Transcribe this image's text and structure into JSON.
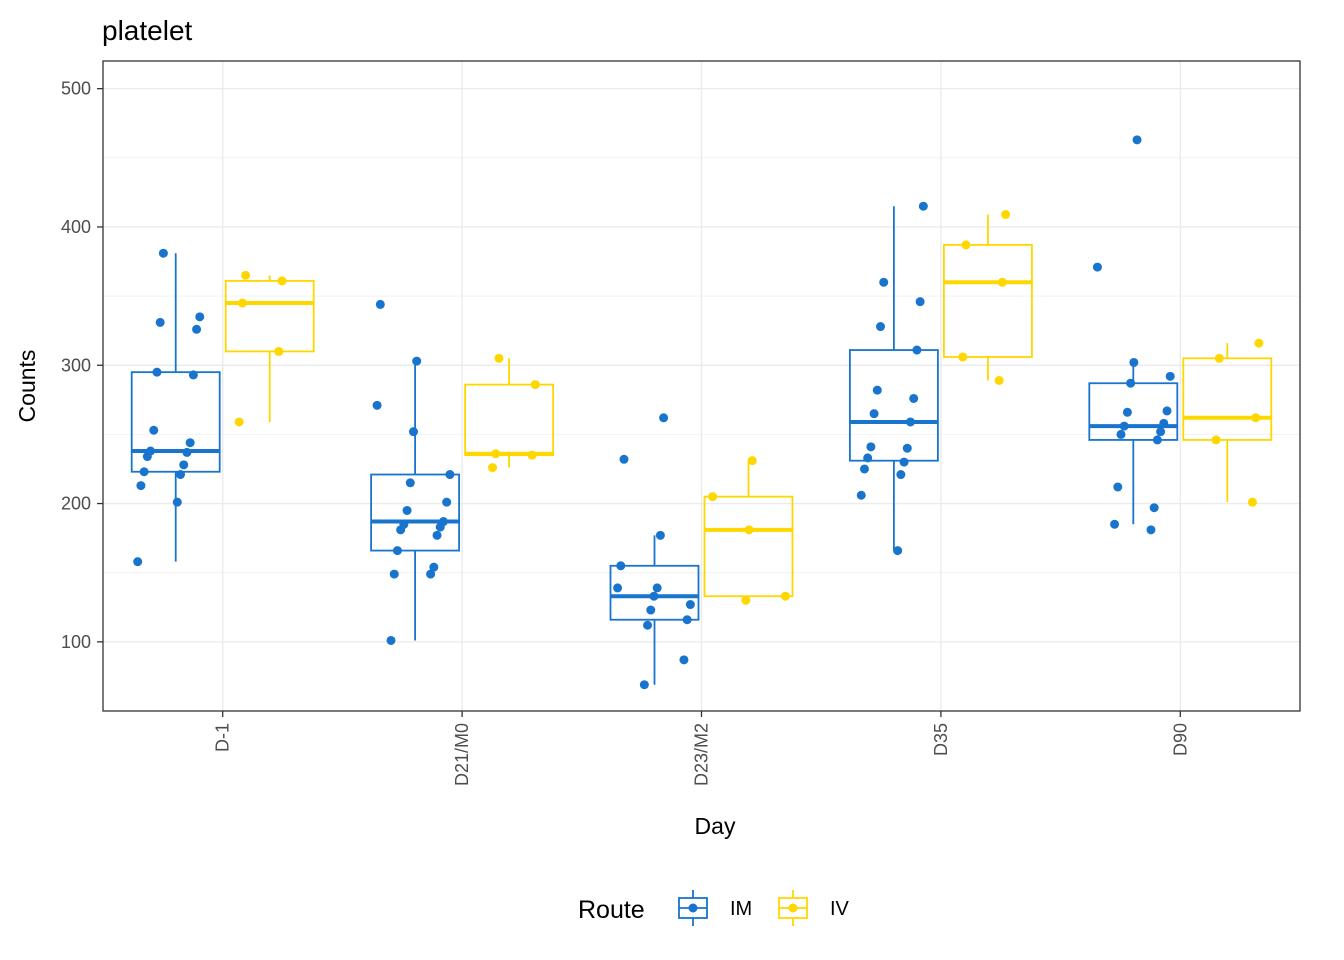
{
  "chart_data": {
    "type": "box",
    "title": "platelet",
    "xlabel": "Day",
    "ylabel": "Counts",
    "ylim": [
      50,
      520
    ],
    "yticks": [
      100,
      200,
      300,
      400,
      500
    ],
    "categories": [
      "D-1",
      "D21/M0",
      "D23/M2",
      "D35",
      "D90"
    ],
    "grid": true,
    "legend": {
      "title": "Route",
      "position": "bottom"
    },
    "series": [
      {
        "name": "IM",
        "color": "#1874CD",
        "boxes": [
          {
            "min": 158,
            "q1": 223,
            "median": 238,
            "q3": 295,
            "max": 381
          },
          {
            "min": 101,
            "q1": 166,
            "median": 187,
            "q3": 221,
            "max": 303
          },
          {
            "min": 69,
            "q1": 116,
            "median": 133,
            "q3": 155,
            "max": 177
          },
          {
            "min": 166,
            "q1": 231,
            "median": 259,
            "q3": 311,
            "max": 415
          },
          {
            "min": 185,
            "q1": 246,
            "median": 256,
            "q3": 287,
            "max": 302
          }
        ],
        "points": [
          [
            158,
            201,
            213,
            221,
            223,
            228,
            234,
            237,
            238,
            244,
            253,
            293,
            295,
            326,
            331,
            335,
            381
          ],
          [
            101,
            149,
            149,
            154,
            166,
            177,
            181,
            183,
            185,
            187,
            195,
            201,
            215,
            221,
            252,
            271,
            303,
            344
          ],
          [
            69,
            87,
            112,
            116,
            123,
            127,
            133,
            139,
            139,
            155,
            177,
            232,
            262
          ],
          [
            166,
            206,
            221,
            225,
            230,
            233,
            240,
            241,
            259,
            265,
            276,
            282,
            311,
            328,
            346,
            360,
            415
          ],
          [
            181,
            185,
            197,
            212,
            246,
            250,
            252,
            256,
            258,
            266,
            267,
            287,
            292,
            302,
            371,
            463
          ]
        ]
      },
      {
        "name": "IV",
        "color": "#FFD700",
        "boxes": [
          {
            "min": 259,
            "q1": 310,
            "median": 345,
            "q3": 361,
            "max": 365
          },
          {
            "min": 226,
            "q1": 235,
            "median": 236,
            "q3": 286,
            "max": 305
          },
          {
            "min": 130,
            "q1": 133,
            "median": 181,
            "q3": 205,
            "max": 231
          },
          {
            "min": 289,
            "q1": 306,
            "median": 360,
            "q3": 387,
            "max": 409
          },
          {
            "min": 201,
            "q1": 246,
            "median": 262,
            "q3": 305,
            "max": 316
          }
        ],
        "points": [
          [
            259,
            310,
            345,
            361,
            365
          ],
          [
            226,
            235,
            236,
            286,
            305
          ],
          [
            130,
            133,
            181,
            205,
            231
          ],
          [
            289,
            306,
            360,
            387,
            409
          ],
          [
            201,
            246,
            262,
            305,
            316
          ]
        ]
      }
    ]
  }
}
